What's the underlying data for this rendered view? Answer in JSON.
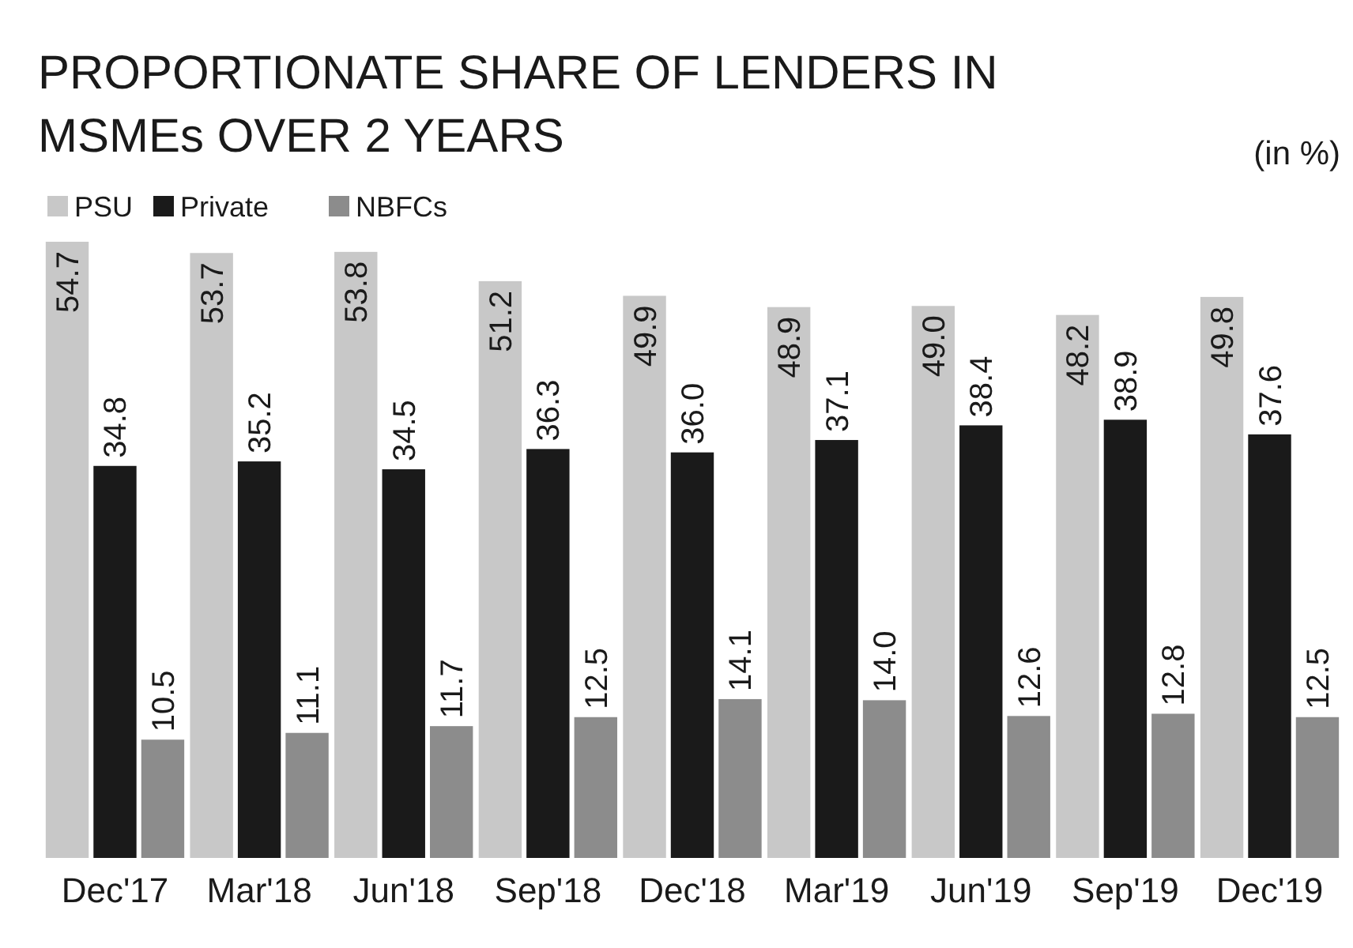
{
  "chart_data": {
    "type": "bar",
    "title": "PROPORTIONATE SHARE OF LENDERS IN MSMEs OVER 2 YEARS",
    "subtitle": "(in %)",
    "categories": [
      "Dec'17",
      "Mar'18",
      "Jun'18",
      "Sep'18",
      "Dec'18",
      "Mar'19",
      "Jun'19",
      "Sep'19",
      "Dec'19"
    ],
    "series": [
      {
        "name": "PSU",
        "color": "#c8c8c8",
        "values": [
          54.7,
          53.7,
          53.8,
          51.2,
          49.9,
          48.9,
          49.0,
          48.2,
          49.8
        ],
        "value_labels": [
          "54.7",
          "53.7",
          "53.8",
          "51.2",
          "49.9",
          "48.9",
          "49.0",
          "48.2",
          "49.8"
        ]
      },
      {
        "name": "Private",
        "color": "#1a1a1a",
        "values": [
          34.8,
          35.2,
          34.5,
          36.3,
          36.0,
          37.1,
          38.4,
          38.9,
          37.6
        ],
        "value_labels": [
          "34.8",
          "35.2",
          "34.5",
          "36.3",
          "36.0",
          "37.1",
          "38.4",
          "38.9",
          "37.6"
        ]
      },
      {
        "name": "NBFCs",
        "color": "#8c8c8c",
        "values": [
          10.5,
          11.1,
          11.7,
          12.5,
          14.1,
          14.0,
          12.6,
          12.8,
          12.5
        ],
        "value_labels": [
          "10.5",
          "11.1",
          "11.7",
          "12.5",
          "14.1",
          "14.0",
          "12.6",
          "12.8",
          "12.5"
        ]
      }
    ],
    "legend": "top left"
  }
}
